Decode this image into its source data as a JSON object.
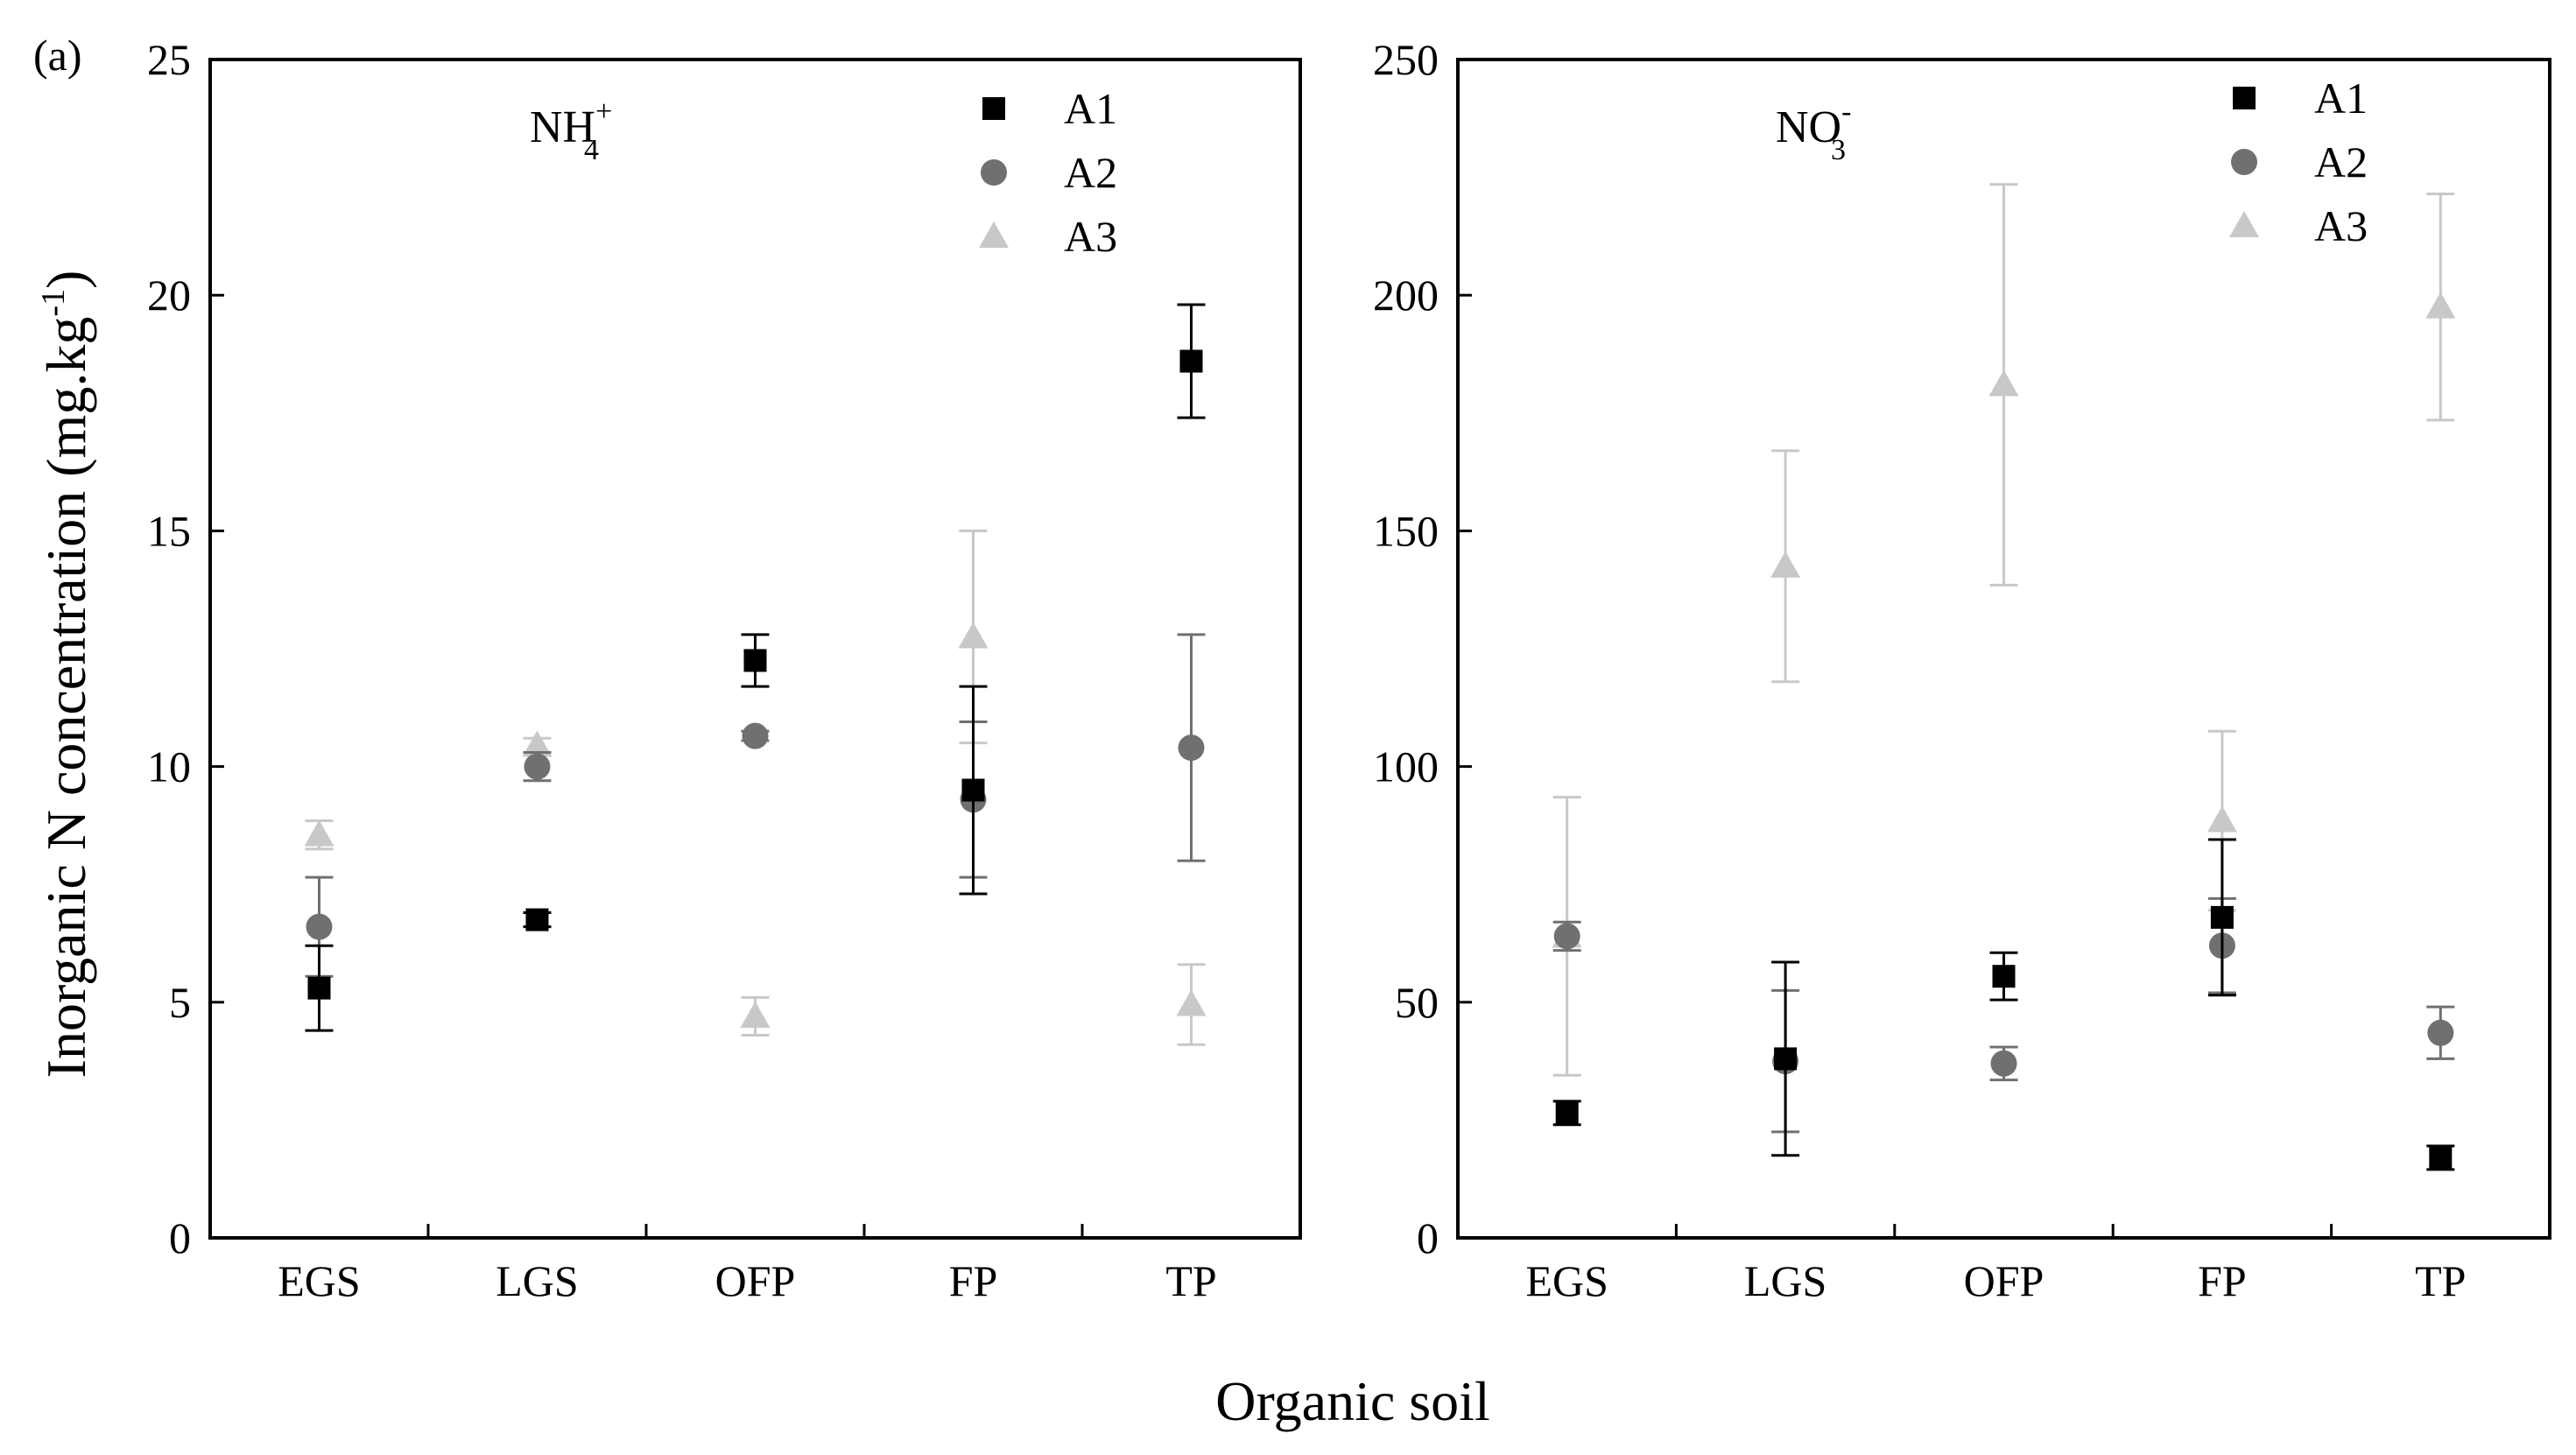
{
  "figure": {
    "panel_letter": "(a)",
    "ylabel": "Inorganic N concentration (mg.kg-1)",
    "ylabel_main": "Inorganic N concentration (mg.kg",
    "ylabel_sup": "-1",
    "ylabel_close": ")",
    "xlabel": "Organic soil"
  },
  "colors": {
    "A1": "#000000",
    "A2": "#707070",
    "A3": "#c8c8c8",
    "axis": "#000000"
  },
  "chart_data": [
    {
      "type": "scatter",
      "title": "NH4+",
      "title_base": "NH",
      "title_sub": "4",
      "title_sup": "+",
      "categories": [
        "EGS",
        "LGS",
        "OFP",
        "FP",
        "TP"
      ],
      "ylim": [
        0,
        25
      ],
      "yticks": [
        0,
        5,
        10,
        15,
        20,
        25
      ],
      "legend_position": "top-right",
      "series": [
        {
          "name": "A1",
          "marker": "square",
          "values": [
            5.3,
            6.75,
            12.25,
            9.5,
            18.6
          ],
          "errors": [
            0.9,
            0.15,
            0.55,
            2.2,
            1.2
          ]
        },
        {
          "name": "A2",
          "marker": "circle",
          "values": [
            6.6,
            10.0,
            10.65,
            9.3,
            10.4
          ],
          "errors": [
            1.05,
            0.3,
            0.1,
            1.65,
            2.4
          ]
        },
        {
          "name": "A3",
          "marker": "triangle",
          "values": [
            8.55,
            10.45,
            4.7,
            12.75,
            4.95
          ],
          "errors": [
            0.3,
            0.15,
            0.4,
            2.25,
            0.85
          ]
        }
      ]
    },
    {
      "type": "scatter",
      "title": "NO3-",
      "title_base": "NO",
      "title_sub": "3",
      "title_sup": "-",
      "categories": [
        "EGS",
        "LGS",
        "OFP",
        "FP",
        "TP"
      ],
      "ylim": [
        0,
        250
      ],
      "yticks": [
        0,
        50,
        100,
        150,
        200,
        250
      ],
      "legend_position": "top-right",
      "series": [
        {
          "name": "A1",
          "marker": "square",
          "values": [
            26.5,
            38,
            55.5,
            68,
            17
          ],
          "errors": [
            2.5,
            20.5,
            5,
            16.5,
            2.5
          ]
        },
        {
          "name": "A2",
          "marker": "circle",
          "values": [
            64,
            37.5,
            37,
            62,
            43.5
          ],
          "errors": [
            3,
            15,
            3.5,
            10,
            5.5
          ]
        },
        {
          "name": "A3",
          "marker": "triangle",
          "values": [
            64,
            142.5,
            181,
            88.5,
            197.5
          ],
          "errors": [
            29.5,
            24.5,
            42.5,
            19,
            24
          ]
        }
      ]
    }
  ]
}
